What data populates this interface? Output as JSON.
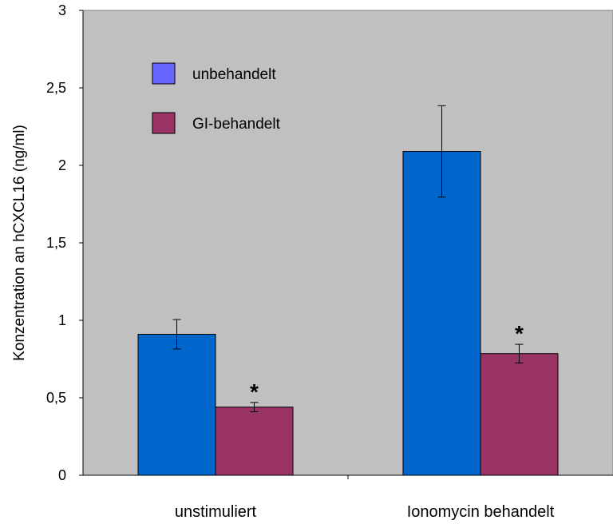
{
  "chart_data": {
    "type": "bar",
    "title": "",
    "xlabel": "",
    "ylabel": "Konzentration an hCXCL16 (ng/ml)",
    "ylim": [
      0,
      3
    ],
    "yticks": [
      0,
      0.5,
      1,
      1.5,
      2,
      2.5,
      3
    ],
    "ytick_labels": [
      "0",
      "0,5",
      "1",
      "1,5",
      "2",
      "2,5",
      "3"
    ],
    "categories": [
      "unstimuliert",
      "Ionomycin behandelt"
    ],
    "series": [
      {
        "name": "unbehandelt",
        "color": "#0066CC",
        "legend_color": "#6666FF",
        "values": [
          0.91,
          2.09
        ],
        "errors": [
          0.095,
          0.295
        ],
        "annotations": [
          "",
          ""
        ]
      },
      {
        "name": "GI-behandelt",
        "color": "#993366",
        "legend_color": "#993366",
        "values": [
          0.44,
          0.785
        ],
        "errors": [
          0.03,
          0.06
        ],
        "annotations": [
          "*",
          "*"
        ]
      }
    ],
    "plot_background": "#C0C0C0",
    "grid": false,
    "legend_position": "top-left (inside plot)"
  }
}
